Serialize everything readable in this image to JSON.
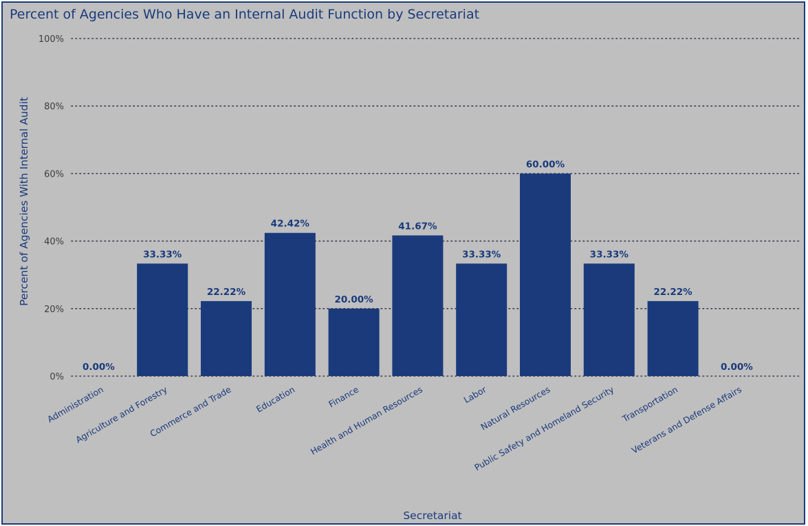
{
  "chart_data": {
    "type": "bar",
    "title": "Percent of Agencies Who Have an Internal Audit Function by Secretariat",
    "xlabel": "Secretariat",
    "ylabel": "Percent of Agencies With Internal Audit",
    "ylim": [
      0,
      100
    ],
    "yticks": [
      0,
      20,
      40,
      60,
      80,
      100
    ],
    "ytick_labels": [
      "0%",
      "20%",
      "40%",
      "60%",
      "80%",
      "100%"
    ],
    "grid": "dotted horizontal",
    "categories": [
      "Administration",
      "Agriculture and Forestry",
      "Commerce and Trade",
      "Education",
      "Finance",
      "Health and Human Resources",
      "Labor",
      "Natural Resources",
      "Public Safety and Homeland Security",
      "Transportation",
      "Veterans and Defense Affairs"
    ],
    "values": [
      0.0,
      33.33,
      22.22,
      42.42,
      20.0,
      41.67,
      33.33,
      60.0,
      33.33,
      22.22,
      0.0
    ],
    "data_labels": [
      "0.00%",
      "33.33%",
      "22.22%",
      "42.42%",
      "20.00%",
      "41.67%",
      "33.33%",
      "60.00%",
      "33.33%",
      "22.22%",
      "0.00%"
    ],
    "colors": {
      "bar": "#1a3a7c",
      "background": "#bfbfbf",
      "text": "#1a3a7c",
      "grid": "#3c3c50"
    }
  }
}
